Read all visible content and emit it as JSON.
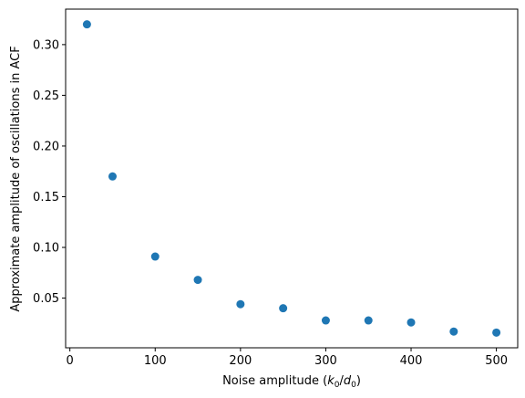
{
  "chart_data": {
    "type": "scatter",
    "title": "",
    "xlabel": "Noise amplitude",
    "xlabel_math": "(k0/d0)",
    "ylabel": "Approximate amplitude of oscillations in ACF",
    "x": [
      20,
      50,
      100,
      150,
      200,
      250,
      300,
      350,
      400,
      450,
      500
    ],
    "y": [
      0.32,
      0.17,
      0.091,
      0.068,
      0.044,
      0.04,
      0.028,
      0.028,
      0.026,
      0.017,
      0.016
    ],
    "xlim": [
      -5,
      525
    ],
    "ylim": [
      0.001,
      0.335
    ],
    "xticks": [
      0,
      100,
      200,
      300,
      400,
      500
    ],
    "xtick_labels": [
      "0",
      "100",
      "200",
      "300",
      "400",
      "500"
    ],
    "yticks": [
      0.05,
      0.1,
      0.15,
      0.2,
      0.25,
      0.3
    ],
    "ytick_labels": [
      "0.05",
      "0.10",
      "0.15",
      "0.20",
      "0.25",
      "0.30"
    ],
    "grid": false,
    "marker_color": "#1f77b4"
  }
}
